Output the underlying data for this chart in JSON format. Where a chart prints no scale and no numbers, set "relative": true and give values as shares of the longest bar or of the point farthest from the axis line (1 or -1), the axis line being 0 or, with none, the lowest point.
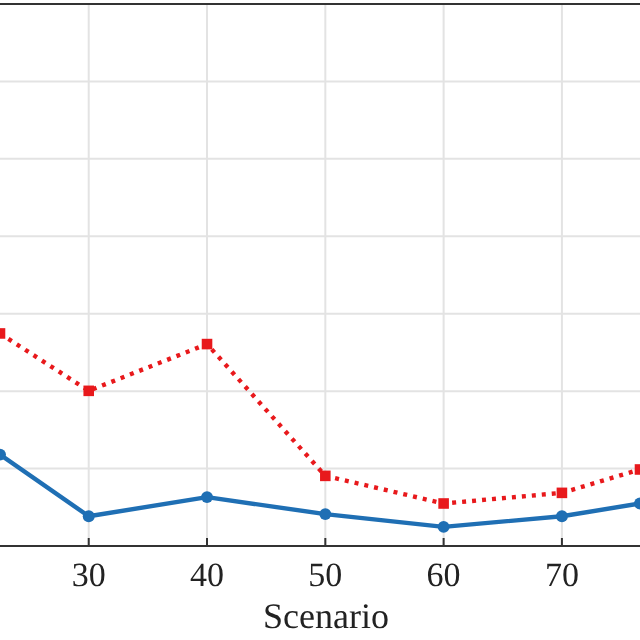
{
  "chart_data": {
    "type": "line",
    "xlabel": "Scenario",
    "relative": true,
    "grid": true,
    "x": [
      22.5,
      30,
      40,
      50,
      60,
      70,
      76.6
    ],
    "xlim": [
      22.5,
      76.6
    ],
    "xticks": [
      30,
      40,
      50,
      60,
      70
    ],
    "series": [
      {
        "color": "#e8191c",
        "marker": "square",
        "line_style": "dotted",
        "values": [
          1,
          0.73,
          0.95,
          0.33,
          0.2,
          0.25,
          0.36
        ]
      },
      {
        "color": "#1f6fb4",
        "marker": "circle",
        "line_style": "solid",
        "values": [
          0.43,
          0.14,
          0.23,
          0.15,
          0.09,
          0.14,
          0.2
        ]
      }
    ]
  }
}
